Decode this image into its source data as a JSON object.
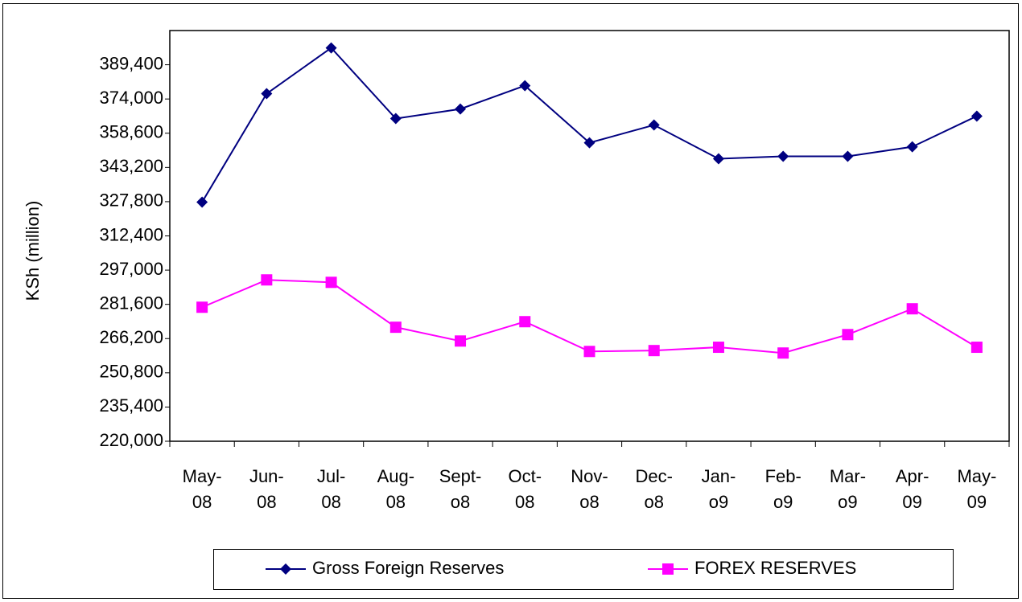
{
  "chart_data": {
    "type": "line",
    "y_label": "KSh (million)",
    "categories": [
      "May-08",
      "Jun-08",
      "Jul-08",
      "Aug-08",
      "Sept-o8",
      "Oct-08",
      "Nov-o8",
      "Dec-o8",
      "Jan-o9",
      "Feb-o9",
      "Mar-o9",
      "Apr-09",
      "May-09"
    ],
    "series": [
      {
        "name": "Gross Foreign Reserves",
        "color": "#000080",
        "marker": "diamond",
        "values": [
          327600,
          376400,
          397000,
          365200,
          369500,
          380000,
          354300,
          362300,
          347100,
          348200,
          348200,
          352500,
          366300
        ]
      },
      {
        "name": "FOREX RESERVES",
        "color": "#ff00ff",
        "marker": "square",
        "values": [
          280300,
          292600,
          291500,
          271300,
          265100,
          273800,
          260400,
          260800,
          262300,
          259700,
          268000,
          279600,
          262300
        ]
      }
    ],
    "ylim": [
      220000,
      404800
    ],
    "yticks": [
      {
        "value": 220000,
        "label": "220,000"
      },
      {
        "value": 235400,
        "label": "235,400"
      },
      {
        "value": 250800,
        "label": "250,800"
      },
      {
        "value": 266200,
        "label": "266,200"
      },
      {
        "value": 281600,
        "label": "281,600"
      },
      {
        "value": 297000,
        "label": "297,000"
      },
      {
        "value": 312400,
        "label": "312,400"
      },
      {
        "value": 327800,
        "label": "327,800"
      },
      {
        "value": 343200,
        "label": "343,200"
      },
      {
        "value": 358600,
        "label": "358,600"
      },
      {
        "value": 374000,
        "label": "374,000"
      },
      {
        "value": 389400,
        "label": "389,400"
      }
    ],
    "grid": false,
    "legend": "bottom"
  }
}
